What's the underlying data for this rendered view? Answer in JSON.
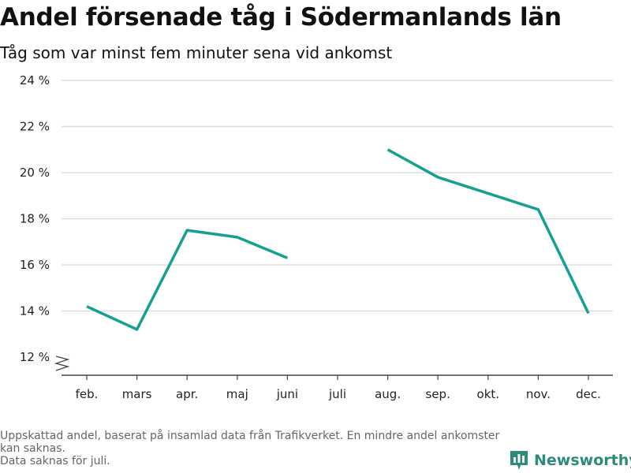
{
  "title": "Andel försenade tåg i Södermanlands län",
  "subtitle": "Tåg som var minst fem minuter sena vid ankomst",
  "footer": {
    "line1": "Uppskattad andel, baserat på insamlad data från Trafikverket. En mindre andel ankomster kan saknas.",
    "line2": "Data saknas för juli."
  },
  "brand": {
    "name": "Newsworthy",
    "icon": "newsworthy-logo-icon"
  },
  "colors": {
    "line": "#16a08f",
    "grid": "#dddddd",
    "axis": "#444444",
    "brand": "#2e8b7a"
  },
  "chart_data": {
    "type": "line",
    "categories": [
      "feb.",
      "mars",
      "apr.",
      "maj",
      "juni",
      "juli",
      "aug.",
      "sep.",
      "okt.",
      "nov.",
      "dec."
    ],
    "series": [
      {
        "values": [
          14.2,
          13.2,
          17.5,
          17.2,
          16.3,
          null,
          21.0,
          19.8,
          19.1,
          18.4,
          13.9
        ]
      }
    ],
    "ylim": [
      12,
      24
    ],
    "yticks": [
      12,
      14,
      16,
      18,
      20,
      22,
      24
    ],
    "ytick_labels": [
      "12 %",
      "14 %",
      "16 %",
      "18 %",
      "20 %",
      "22 %",
      "24 %"
    ],
    "axis_break": true,
    "grid": true
  }
}
